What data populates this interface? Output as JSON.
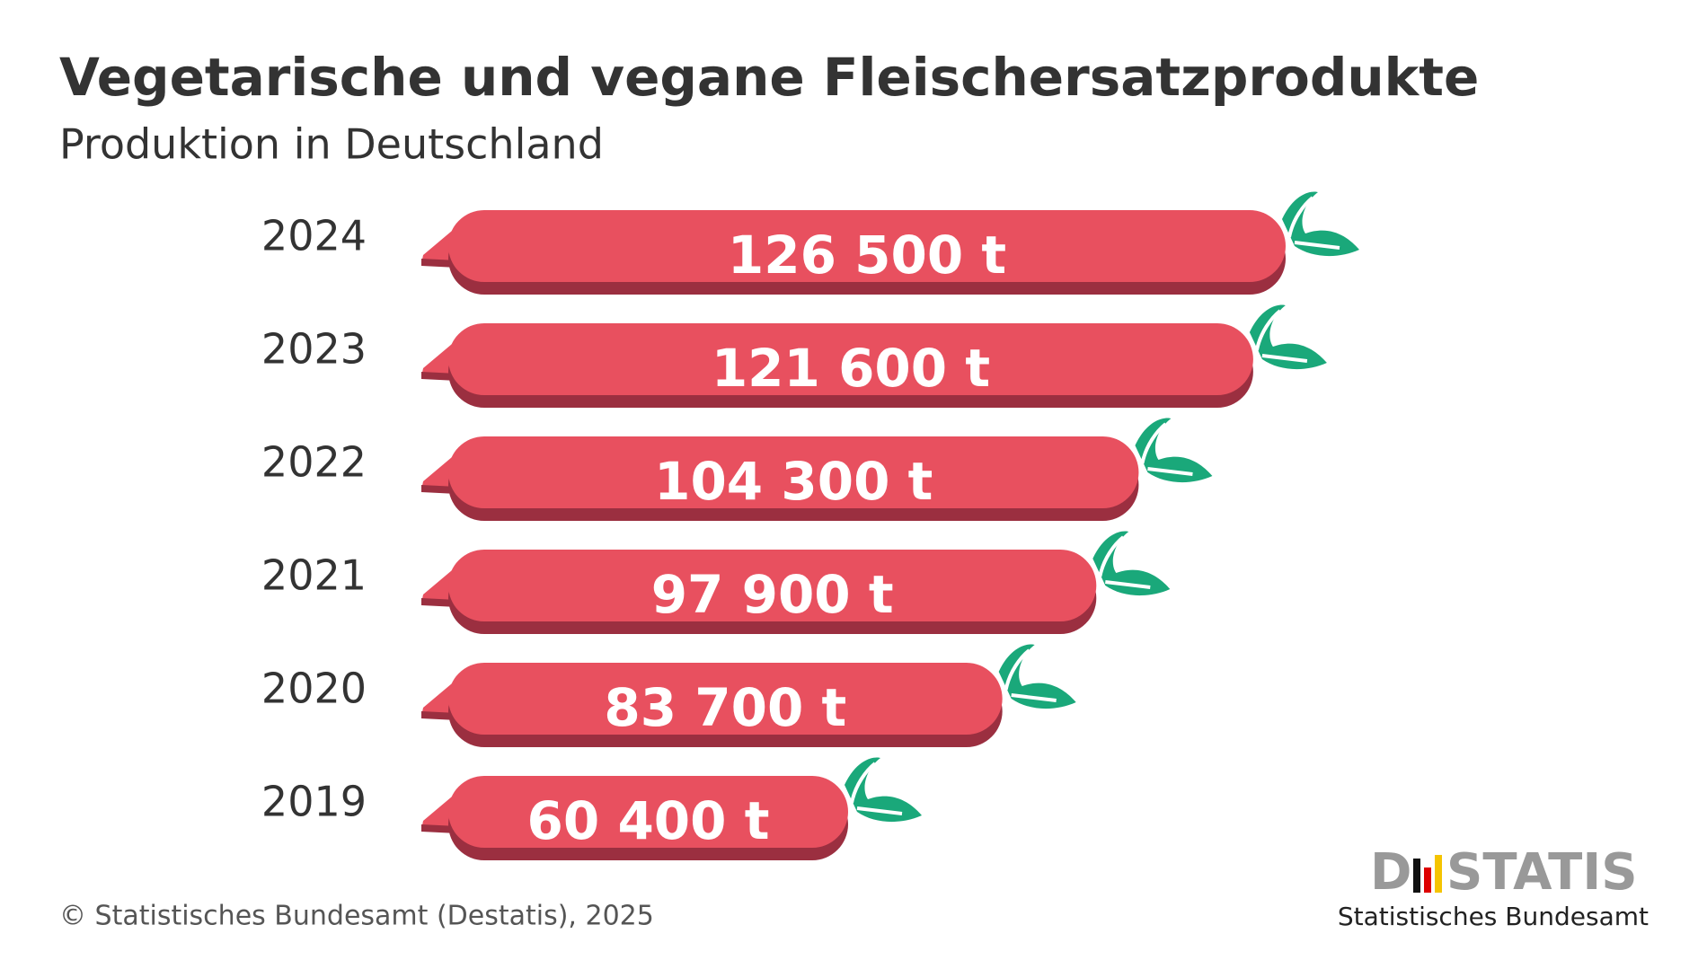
{
  "chart_data": {
    "type": "bar",
    "title": "Vegetarische und vegane Fleischersatzprodukte",
    "subtitle": "Produktion in Deutschland",
    "categories": [
      "2024",
      "2023",
      "2022",
      "2021",
      "2020",
      "2019"
    ],
    "values": [
      126500,
      121600,
      104300,
      97900,
      83700,
      60400
    ],
    "value_labels": [
      "126 500 t",
      "121 600 t",
      "104 300 t",
      "97 900 t",
      "83 700 t",
      "60 400 t"
    ],
    "color": "#e8505f",
    "source": "© Statistisches Bundesamt (Destatis), 2025",
    "logo_left": "D",
    "logo_right": "STATIS",
    "logo_subtitle": "Statistisches Bundesamt"
  }
}
